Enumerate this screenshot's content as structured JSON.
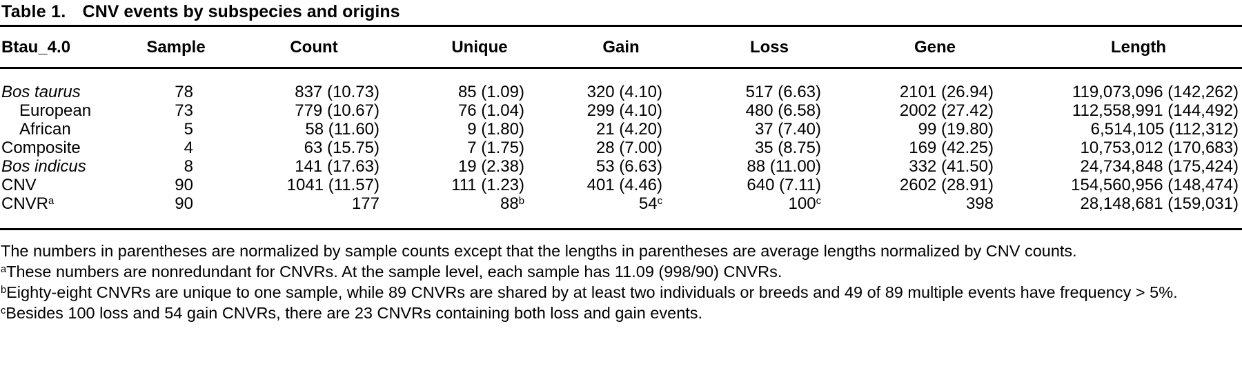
{
  "title": {
    "label": "Table 1.",
    "text": "CNV events by subspecies and origins"
  },
  "table": {
    "columns": [
      {
        "label": "Btau_4.0"
      },
      {
        "label": "Sample"
      },
      {
        "label": "Count"
      },
      {
        "label": "Unique"
      },
      {
        "label": "Gain"
      },
      {
        "label": "Loss"
      },
      {
        "label": "Gene"
      },
      {
        "label": "Length"
      }
    ],
    "rows": [
      {
        "italic": true,
        "cells": [
          "Bos taurus",
          "78",
          "837 (10.73)",
          "85 (1.09)",
          "320 (4.10)",
          "517 (6.63)",
          "2101 (26.94)",
          "119,073,096 (142,262)"
        ]
      },
      {
        "indent": true,
        "cells": [
          "European",
          "73",
          "779 (10.67)",
          "76 (1.04)",
          "299 (4.10)",
          "480 (6.58)",
          "2002 (27.42)",
          "112,558,991 (144,492)"
        ]
      },
      {
        "indent": true,
        "cells": [
          "African",
          "5",
          "58 (11.60)",
          "9 (1.80)",
          "21 (4.20)",
          "37 (7.40)",
          "99 (19.80)",
          "6,514,105 (112,312)"
        ]
      },
      {
        "cells": [
          "Composite",
          "4",
          "63 (15.75)",
          "7 (1.75)",
          "28 (7.00)",
          "35 (8.75)",
          "169 (42.25)",
          "10,753,012 (170,683)"
        ]
      },
      {
        "italic": true,
        "cells": [
          "Bos indicus",
          "8",
          "141 (17.63)",
          "19 (2.38)",
          "53 (6.63)",
          "88 (11.00)",
          "332 (41.50)",
          "24,734,848 (175,424)"
        ]
      },
      {
        "cells": [
          "CNV",
          "90",
          "1041 (11.57)",
          "111 (1.23)",
          "401 (4.46)",
          "640 (7.11)",
          "2602 (28.91)",
          "154,560,956 (148,474)"
        ]
      },
      {
        "cells": [
          {
            "text": "CNVR",
            "sup": "a"
          },
          "90",
          "177",
          {
            "text": "88",
            "sup": "b"
          },
          {
            "text": "54",
            "sup": "c"
          },
          {
            "text": "100",
            "sup": "c"
          },
          "398",
          "28,148,681 (159,031)"
        ]
      }
    ]
  },
  "footnotes": {
    "general": "The numbers in parentheses are normalized by sample counts except that the lengths in parentheses are average lengths normalized by CNV counts.",
    "items": [
      {
        "sup": "a",
        "text": "These numbers are nonredundant for CNVRs. At the sample level, each sample has 11.09 (998/90) CNVRs."
      },
      {
        "sup": "b",
        "text": "Eighty-eight CNVRs are unique to one sample, while 89 CNVRs are shared by at least two individuals or breeds and 49 of 89 multiple events have frequency > 5%."
      },
      {
        "sup": "c",
        "text": "Besides 100 loss and 54 gain CNVRs, there are 23 CNVRs containing both loss and gain events."
      }
    ]
  }
}
